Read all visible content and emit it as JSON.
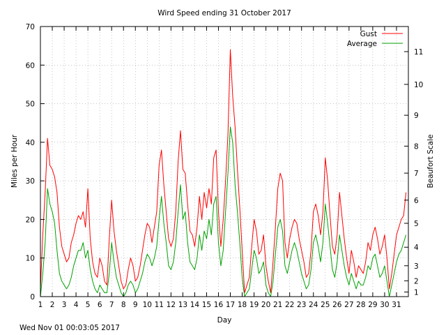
{
  "chart_data": {
    "type": "line",
    "title": "Wird Speed ending 31 October 2017",
    "xlabel": "Day",
    "ylabel": "Miles per Hour",
    "y2label": "Beaufort Scale",
    "xlim": [
      1,
      32
    ],
    "ylim": [
      0,
      70
    ],
    "x_ticks": [
      "1",
      "2",
      "3",
      "4",
      "5",
      "6",
      "7",
      "8",
      "9",
      "10",
      "11",
      "12",
      "13",
      "14",
      "15",
      "16",
      "17",
      "18",
      "19",
      "20",
      "21",
      "22",
      "23",
      "24",
      "25",
      "26",
      "27",
      "28",
      "29",
      "30",
      "31"
    ],
    "y_ticks": [
      "0",
      "10",
      "20",
      "30",
      "40",
      "50",
      "60",
      "70"
    ],
    "beaufort_ticks": [
      {
        "label": "1",
        "mph": 1.2
      },
      {
        "label": "2",
        "mph": 4.1
      },
      {
        "label": "3",
        "mph": 8.0
      },
      {
        "label": "4",
        "mph": 12.8
      },
      {
        "label": "5",
        "mph": 19.0
      },
      {
        "label": "6",
        "mph": 25.0
      },
      {
        "label": "7",
        "mph": 32.0
      },
      {
        "label": "8",
        "mph": 39.0
      },
      {
        "label": "9",
        "mph": 47.0
      },
      {
        "label": "10",
        "mph": 55.0
      },
      {
        "label": "11",
        "mph": 63.5
      }
    ],
    "grid": true,
    "legend_position": "top-right",
    "series": [
      {
        "name": "Gust",
        "color": "#ff0000",
        "x": [
          1.0,
          1.2,
          1.4,
          1.6,
          1.8,
          2.0,
          2.2,
          2.4,
          2.6,
          2.8,
          3.0,
          3.2,
          3.4,
          3.6,
          3.8,
          4.0,
          4.2,
          4.4,
          4.6,
          4.8,
          5.0,
          5.2,
          5.4,
          5.6,
          5.8,
          6.0,
          6.2,
          6.4,
          6.6,
          6.8,
          7.0,
          7.2,
          7.4,
          7.6,
          7.8,
          8.0,
          8.2,
          8.4,
          8.6,
          8.8,
          9.0,
          9.2,
          9.4,
          9.6,
          9.8,
          10.0,
          10.2,
          10.4,
          10.6,
          10.8,
          11.0,
          11.2,
          11.4,
          11.6,
          11.8,
          12.0,
          12.2,
          12.4,
          12.6,
          12.8,
          13.0,
          13.2,
          13.4,
          13.6,
          13.8,
          14.0,
          14.2,
          14.4,
          14.6,
          14.8,
          15.0,
          15.2,
          15.4,
          15.6,
          15.8,
          16.0,
          16.2,
          16.4,
          16.6,
          16.8,
          17.0,
          17.2,
          17.4,
          17.6,
          17.8,
          18.0,
          18.2,
          18.4,
          18.6,
          18.8,
          19.0,
          19.2,
          19.4,
          19.6,
          19.8,
          20.0,
          20.2,
          20.4,
          20.6,
          20.8,
          21.0,
          21.2,
          21.4,
          21.6,
          21.8,
          22.0,
          22.2,
          22.4,
          22.6,
          22.8,
          23.0,
          23.2,
          23.4,
          23.6,
          23.8,
          24.0,
          24.2,
          24.4,
          24.6,
          24.8,
          25.0,
          25.2,
          25.4,
          25.6,
          25.8,
          26.0,
          26.2,
          26.4,
          26.6,
          26.8,
          27.0,
          27.2,
          27.4,
          27.6,
          27.8,
          28.0,
          28.2,
          28.4,
          28.6,
          28.8,
          29.0,
          29.2,
          29.4,
          29.6,
          29.8,
          30.0,
          30.2,
          30.4,
          30.6,
          30.8,
          31.0,
          31.2,
          31.4,
          31.6,
          31.8
        ],
        "values": [
          2,
          16,
          27,
          41,
          34,
          33,
          31,
          27,
          18,
          13,
          11,
          9,
          10,
          14,
          16,
          19,
          21,
          20,
          22,
          18,
          28,
          15,
          9,
          6,
          5,
          10,
          8,
          4,
          3,
          15,
          25,
          17,
          12,
          8,
          4,
          2,
          3,
          7,
          10,
          8,
          4,
          5,
          8,
          12,
          16,
          19,
          18,
          14,
          18,
          22,
          34,
          38,
          29,
          22,
          15,
          13,
          15,
          22,
          35,
          43,
          33,
          32,
          24,
          17,
          16,
          13,
          18,
          26,
          20,
          27,
          23,
          28,
          24,
          36,
          38,
          22,
          13,
          20,
          30,
          42,
          64,
          52,
          44,
          33,
          23,
          12,
          1,
          3,
          5,
          13,
          20,
          17,
          11,
          12,
          16,
          8,
          4,
          1,
          9,
          18,
          28,
          32,
          30,
          14,
          10,
          15,
          18,
          20,
          19,
          15,
          12,
          9,
          5,
          6,
          12,
          22,
          24,
          21,
          16,
          22,
          36,
          30,
          21,
          13,
          11,
          16,
          27,
          21,
          15,
          10,
          6,
          12,
          9,
          5,
          8,
          7,
          6,
          9,
          14,
          12,
          16,
          18,
          15,
          11,
          13,
          16,
          10,
          2,
          6,
          11,
          16,
          18,
          20,
          21,
          27
        ]
      },
      {
        "name": "Average",
        "color": "#00a000",
        "x": [
          1.0,
          1.2,
          1.4,
          1.6,
          1.8,
          2.0,
          2.2,
          2.4,
          2.6,
          2.8,
          3.0,
          3.2,
          3.4,
          3.6,
          3.8,
          4.0,
          4.2,
          4.4,
          4.6,
          4.8,
          5.0,
          5.2,
          5.4,
          5.6,
          5.8,
          6.0,
          6.2,
          6.4,
          6.6,
          6.8,
          7.0,
          7.2,
          7.4,
          7.6,
          7.8,
          8.0,
          8.2,
          8.4,
          8.6,
          8.8,
          9.0,
          9.2,
          9.4,
          9.6,
          9.8,
          10.0,
          10.2,
          10.4,
          10.6,
          10.8,
          11.0,
          11.2,
          11.4,
          11.6,
          11.8,
          12.0,
          12.2,
          12.4,
          12.6,
          12.8,
          13.0,
          13.2,
          13.4,
          13.6,
          13.8,
          14.0,
          14.2,
          14.4,
          14.6,
          14.8,
          15.0,
          15.2,
          15.4,
          15.6,
          15.8,
          16.0,
          16.2,
          16.4,
          16.6,
          16.8,
          17.0,
          17.2,
          17.4,
          17.6,
          17.8,
          18.0,
          18.2,
          18.4,
          18.6,
          18.8,
          19.0,
          19.2,
          19.4,
          19.6,
          19.8,
          20.0,
          20.2,
          20.4,
          20.6,
          20.8,
          21.0,
          21.2,
          21.4,
          21.6,
          21.8,
          22.0,
          22.2,
          22.4,
          22.6,
          22.8,
          23.0,
          23.2,
          23.4,
          23.6,
          23.8,
          24.0,
          24.2,
          24.4,
          24.6,
          24.8,
          25.0,
          25.2,
          25.4,
          25.6,
          25.8,
          26.0,
          26.2,
          26.4,
          26.6,
          26.8,
          27.0,
          27.2,
          27.4,
          27.6,
          27.8,
          28.0,
          28.2,
          28.4,
          28.6,
          28.8,
          29.0,
          29.2,
          29.4,
          29.6,
          29.8,
          30.0,
          30.2,
          30.4,
          30.6,
          30.8,
          31.0,
          31.2,
          31.4,
          31.6,
          31.8
        ],
        "values": [
          0,
          6,
          14,
          28,
          24,
          22,
          19,
          12,
          6,
          4,
          3,
          2,
          3,
          5,
          8,
          10,
          12,
          12,
          14,
          10,
          12,
          7,
          4,
          2,
          1,
          3,
          2,
          1,
          1,
          6,
          14,
          9,
          5,
          3,
          1,
          0,
          1,
          3,
          4,
          3,
          1,
          2,
          4,
          6,
          9,
          11,
          10,
          8,
          10,
          13,
          20,
          26,
          19,
          14,
          8,
          7,
          9,
          14,
          22,
          29,
          20,
          22,
          14,
          9,
          8,
          7,
          10,
          16,
          12,
          17,
          15,
          20,
          16,
          24,
          26,
          14,
          8,
          12,
          22,
          32,
          44,
          40,
          29,
          22,
          14,
          5,
          0,
          1,
          2,
          7,
          12,
          10,
          6,
          7,
          9,
          3,
          1,
          0,
          4,
          11,
          18,
          20,
          17,
          8,
          6,
          9,
          12,
          14,
          12,
          9,
          6,
          4,
          2,
          3,
          7,
          14,
          16,
          13,
          9,
          14,
          24,
          19,
          13,
          7,
          5,
          9,
          16,
          12,
          8,
          5,
          3,
          6,
          4,
          2,
          4,
          3,
          3,
          5,
          8,
          7,
          10,
          11,
          8,
          5,
          6,
          8,
          4,
          0,
          3,
          6,
          9,
          11,
          12,
          14,
          16
        ]
      }
    ]
  },
  "footer": {
    "timestamp": "Wed Nov 01 00:03:05 2017"
  }
}
